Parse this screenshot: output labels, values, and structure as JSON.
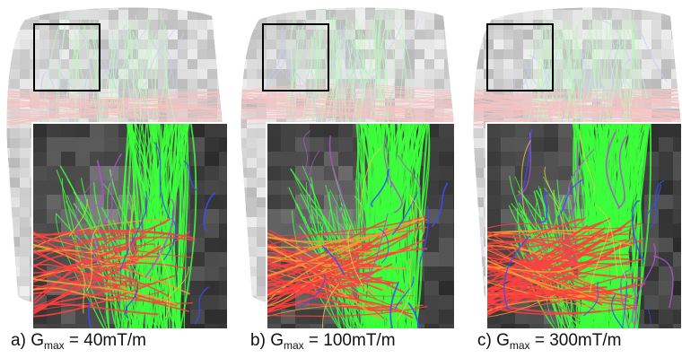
{
  "panels": [
    {
      "letter": "a)",
      "symbol": "G",
      "subscript": "max",
      "value": "= 40mT/m",
      "fiber_density": 0.45
    },
    {
      "letter": "b)",
      "symbol": "G",
      "subscript": "max",
      "value": "= 100mT/m",
      "fiber_density": 0.75
    },
    {
      "letter": "c)",
      "symbol": "G",
      "subscript": "max",
      "value": "= 300mT/m",
      "fiber_density": 1.0
    }
  ],
  "colors": {
    "fiber_green": "#3cff3c",
    "fiber_red": "#ff4040",
    "fiber_blue": "#3a4cff",
    "fiber_orange": "#ff9a30",
    "background_dark": "#151515",
    "roi_box": "#000000"
  }
}
